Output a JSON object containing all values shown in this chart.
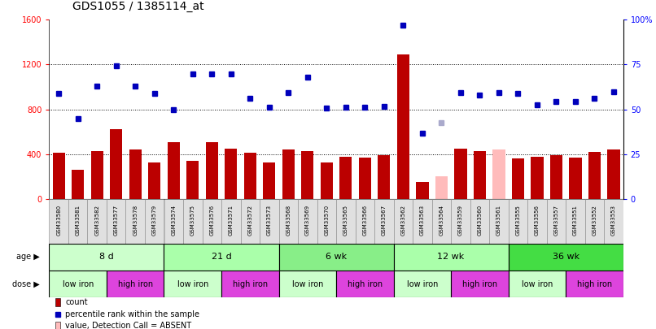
{
  "title": "GDS1055 / 1385114_at",
  "samples": [
    "GSM33580",
    "GSM33581",
    "GSM33582",
    "GSM33577",
    "GSM33578",
    "GSM33579",
    "GSM33574",
    "GSM33575",
    "GSM33576",
    "GSM33571",
    "GSM33572",
    "GSM33573",
    "GSM33568",
    "GSM33569",
    "GSM33570",
    "GSM33565",
    "GSM33566",
    "GSM33567",
    "GSM33562",
    "GSM33563",
    "GSM33564",
    "GSM33559",
    "GSM33560",
    "GSM33561",
    "GSM33555",
    "GSM33556",
    "GSM33557",
    "GSM33551",
    "GSM33552",
    "GSM33553"
  ],
  "counts": [
    410,
    260,
    430,
    620,
    440,
    330,
    510,
    340,
    510,
    450,
    410,
    330,
    440,
    430,
    330,
    380,
    370,
    390,
    1290,
    150,
    200,
    450,
    430,
    440,
    360,
    380,
    390,
    370,
    420,
    440
  ],
  "absent_count": [
    false,
    false,
    false,
    false,
    false,
    false,
    false,
    false,
    false,
    false,
    false,
    false,
    false,
    false,
    false,
    false,
    false,
    false,
    false,
    false,
    true,
    false,
    false,
    true,
    false,
    false,
    false,
    false,
    false,
    false
  ],
  "ranks": [
    940,
    720,
    1010,
    1190,
    1010,
    940,
    800,
    1120,
    1120,
    1120,
    900,
    820,
    950,
    1090,
    810,
    820,
    820,
    830,
    1550,
    590,
    680,
    950,
    930,
    950,
    940,
    840,
    870,
    870,
    900,
    960
  ],
  "absent_rank": [
    false,
    false,
    false,
    false,
    false,
    false,
    false,
    false,
    false,
    false,
    false,
    false,
    false,
    false,
    false,
    false,
    false,
    false,
    false,
    false,
    true,
    false,
    false,
    false,
    false,
    false,
    false,
    false,
    false,
    false
  ],
  "age_groups": [
    {
      "label": "8 d",
      "start": 0,
      "end": 6,
      "color": "#ccffcc"
    },
    {
      "label": "21 d",
      "start": 6,
      "end": 12,
      "color": "#aaffaa"
    },
    {
      "label": "6 wk",
      "start": 12,
      "end": 18,
      "color": "#88ee88"
    },
    {
      "label": "12 wk",
      "start": 18,
      "end": 24,
      "color": "#aaffaa"
    },
    {
      "label": "36 wk",
      "start": 24,
      "end": 30,
      "color": "#44dd44"
    }
  ],
  "dose_groups": [
    {
      "label": "low iron",
      "start": 0,
      "end": 3,
      "color": "#ddffdd"
    },
    {
      "label": "high iron",
      "start": 3,
      "end": 6,
      "color": "#ee44ee"
    },
    {
      "label": "low iron",
      "start": 6,
      "end": 9,
      "color": "#ddffdd"
    },
    {
      "label": "high iron",
      "start": 9,
      "end": 12,
      "color": "#ee44ee"
    },
    {
      "label": "low iron",
      "start": 12,
      "end": 15,
      "color": "#ddffdd"
    },
    {
      "label": "high iron",
      "start": 15,
      "end": 18,
      "color": "#ee44ee"
    },
    {
      "label": "low iron",
      "start": 18,
      "end": 21,
      "color": "#ddffdd"
    },
    {
      "label": "high iron",
      "start": 21,
      "end": 24,
      "color": "#ee44ee"
    },
    {
      "label": "low iron",
      "start": 24,
      "end": 27,
      "color": "#ddffdd"
    },
    {
      "label": "high iron",
      "start": 27,
      "end": 30,
      "color": "#ee44ee"
    }
  ],
  "bar_color": "#bb0000",
  "absent_bar_color": "#ffbbbb",
  "dot_color": "#0000bb",
  "absent_dot_color": "#aaaacc",
  "ylim_left": [
    0,
    1600
  ],
  "yticks_left": [
    0,
    400,
    800,
    1200,
    1600
  ],
  "yticks_right_labels": [
    "0",
    "25",
    "50",
    "75",
    "100%"
  ],
  "hline_values": [
    400,
    800,
    1200
  ],
  "title_fontsize": 10,
  "tick_fontsize": 7,
  "sample_fontsize": 5,
  "legend_fontsize": 7,
  "age_fontsize": 8,
  "dose_fontsize": 7
}
